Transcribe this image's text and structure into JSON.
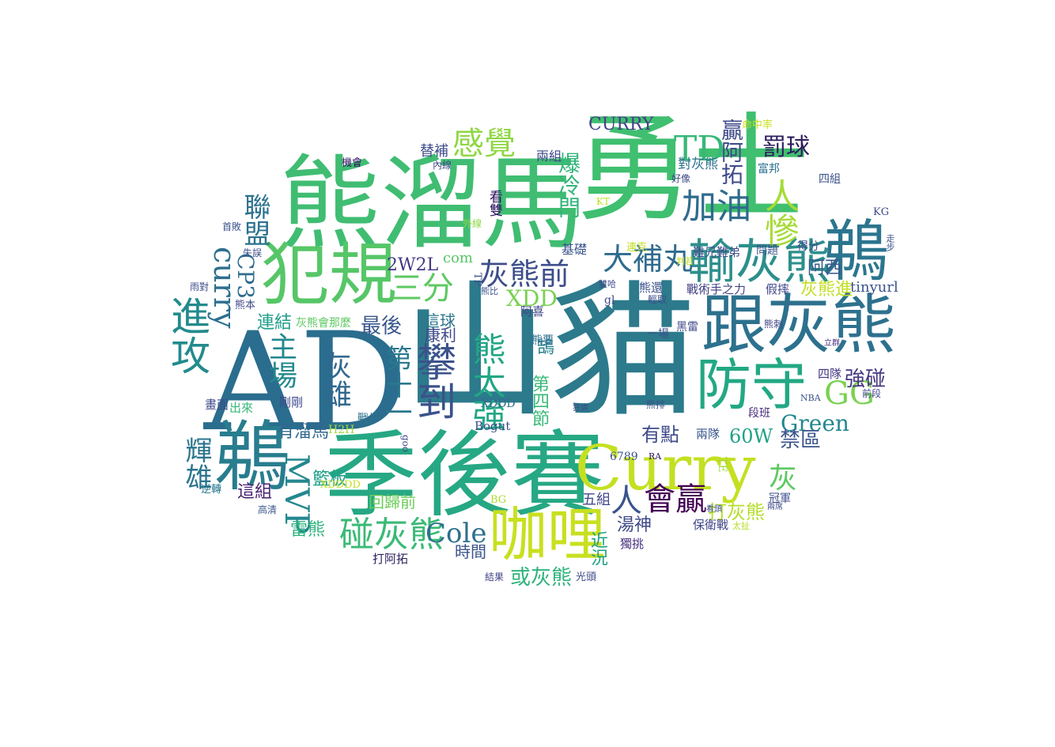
{
  "words": [
    {
      "text": "AD",
      "color": "#2a6d8e"
    },
    {
      "text": "山貓",
      "color": "#2c7a8c"
    },
    {
      "text": "勇士",
      "color": "#3fbf6f"
    },
    {
      "text": "熊溜馬",
      "color": "#40bd72"
    },
    {
      "text": "季後賽",
      "color": "#26a884"
    },
    {
      "text": "跟灰熊",
      "color": "#2d718e"
    },
    {
      "text": "Curry",
      "color": "#c4e021"
    },
    {
      "text": "鵜",
      "color": "#2b758e"
    },
    {
      "text": "鵜",
      "color": "#287d8e"
    },
    {
      "text": "犯規",
      "color": "#56c667"
    },
    {
      "text": "咖哩",
      "color": "#c8e020"
    },
    {
      "text": "防守",
      "color": "#22a884"
    },
    {
      "text": "輸灰熊",
      "color": "#2c8f8c"
    },
    {
      "text": "大補丸",
      "color": "#2f6c8e"
    },
    {
      "text": "灰熊前",
      "color": "#3d4e8a"
    },
    {
      "text": "進攻",
      "color": "#238a8d"
    },
    {
      "text": "攀到",
      "color": "#3b528b"
    },
    {
      "text": "熊太強",
      "color": "#22a785"
    },
    {
      "text": "TD",
      "color": "#37b878"
    },
    {
      "text": "GG",
      "color": "#7ad151"
    },
    {
      "text": "加油",
      "color": "#2f6b8e"
    },
    {
      "text": "人慘",
      "color": "#a5db36"
    },
    {
      "text": "感覺",
      "color": "#8fd744"
    },
    {
      "text": "三分",
      "color": "#5ec962"
    },
    {
      "text": "碰灰熊",
      "color": "#3aba76"
    },
    {
      "text": "curry",
      "color": "#2e6f8e"
    },
    {
      "text": "MVP",
      "color": "#24878e"
    },
    {
      "text": "Cole",
      "color": "#2d708e"
    },
    {
      "text": "會贏",
      "color": "#440154"
    },
    {
      "text": "人",
      "color": "#3a548c"
    },
    {
      "text": "灰",
      "color": "#5ec962"
    },
    {
      "text": "主場",
      "color": "#23898e"
    },
    {
      "text": "灰雄",
      "color": "#31688e"
    },
    {
      "text": "第十一",
      "color": "#2a788e"
    },
    {
      "text": "聯盟",
      "color": "#2c728e"
    },
    {
      "text": "輝雄",
      "color": "#2b758e"
    },
    {
      "text": "CP3",
      "color": "#2e6d8e"
    },
    {
      "text": "罰球",
      "color": "#2d1e5e"
    },
    {
      "text": "贏阿拓",
      "color": "#3e4989"
    },
    {
      "text": "爆冷門",
      "color": "#31b57b"
    },
    {
      "text": "Green",
      "color": "#23888e"
    },
    {
      "text": "強碰",
      "color": "#453781"
    },
    {
      "text": "XDD",
      "color": "#7ad151"
    },
    {
      "text": "最後",
      "color": "#39568c"
    },
    {
      "text": "2W2L",
      "color": "#443983"
    },
    {
      "text": "60W",
      "color": "#1fa187"
    },
    {
      "text": "有點",
      "color": "#3e4a89"
    },
    {
      "text": "禁區",
      "color": "#3a548c"
    },
    {
      "text": "湯神",
      "color": "#3e4a89"
    },
    {
      "text": "或灰熊",
      "color": "#2eb37c"
    },
    {
      "text": "打灰熊",
      "color": "#b5de2b"
    },
    {
      "text": "灰熊進",
      "color": "#c2df23"
    },
    {
      "text": "阿西",
      "color": "#38598c"
    },
    {
      "text": "CURRY",
      "color": "#424086"
    },
    {
      "text": "tinyurl",
      "color": "#3b528b"
    },
    {
      "text": "這球",
      "color": "#2b758e"
    },
    {
      "text": "康利",
      "color": "#3e4989"
    },
    {
      "text": "連結",
      "color": "#1f9e89"
    },
    {
      "text": "有溜馬",
      "color": "#31688e"
    },
    {
      "text": "這組",
      "color": "#481f70"
    },
    {
      "text": "籃板",
      "color": "#1f9e89"
    },
    {
      "text": "雷熊",
      "color": "#2eb37c"
    },
    {
      "text": "時間",
      "color": "#3b528b"
    },
    {
      "text": "回歸前",
      "color": "#6ccd5a"
    },
    {
      "text": "五組",
      "color": "#3f4889"
    },
    {
      "text": "近況",
      "color": "#1fa187"
    },
    {
      "text": "第四節",
      "color": "#38b977"
    },
    {
      "text": "鵠",
      "color": "#277f8e"
    },
    {
      "text": "com",
      "color": "#58c765"
    },
    {
      "text": "替補",
      "color": "#3e4c8a"
    },
    {
      "text": "兩組",
      "color": "#3f4788"
    },
    {
      "text": "看雙",
      "color": "#2d1160"
    },
    {
      "text": "基礎",
      "color": "#3b528b"
    },
    {
      "text": "對灰熊",
      "color": "#2c728e"
    },
    {
      "text": "富邦",
      "color": "#2c728e"
    },
    {
      "text": "四組",
      "color": "#3b528b"
    },
    {
      "text": "得分",
      "color": "#3e4989"
    },
    {
      "text": "問題",
      "color": "#3a548c"
    },
    {
      "text": "難兄難弟",
      "color": "#3d4e8a"
    },
    {
      "text": "戰術手之力",
      "color": "#424186"
    },
    {
      "text": "假摔",
      "color": "#3f4889"
    },
    {
      "text": "熊還",
      "color": "#3b528b"
    },
    {
      "text": "阿喜",
      "color": "#414487"
    },
    {
      "text": "熊要",
      "color": "#2e6e8e"
    },
    {
      "text": "四隊",
      "color": "#453882"
    },
    {
      "text": "段班",
      "color": "#472d7b"
    },
    {
      "text": "兩隊",
      "color": "#39568c"
    },
    {
      "text": "冠軍",
      "color": "#3d4e8a"
    },
    {
      "text": "保衛戰",
      "color": "#3f4889"
    },
    {
      "text": "獨挑",
      "color": "#472f7d"
    },
    {
      "text": "光頭",
      "color": "#3e4989"
    },
    {
      "text": "結果",
      "color": "#414487"
    },
    {
      "text": "打阿拓",
      "color": "#2d1e5e"
    },
    {
      "text": "畫面",
      "color": "#3e4989"
    },
    {
      "text": "出來",
      "color": "#35b779"
    },
    {
      "text": "剛剛",
      "color": "#3e4989"
    },
    {
      "text": "戰外",
      "color": "#2d718e"
    },
    {
      "text": "灰熊會那麼",
      "color": "#5ec962"
    },
    {
      "text": "XDDD",
      "color": "#2e6d8e"
    },
    {
      "text": "Bogut",
      "color": "#3e4989"
    },
    {
      "text": "H2H",
      "color": "#9fda3a"
    },
    {
      "text": "6789",
      "color": "#3b528b"
    },
    {
      "text": "XDDDD",
      "color": "#c2df23"
    },
    {
      "text": "BG",
      "color": "#aadc32"
    },
    {
      "text": "gl",
      "color": "#3e4a89"
    },
    {
      "text": "goo",
      "color": "#3e4989"
    },
    {
      "text": "機會",
      "color": "#2d1160"
    },
    {
      "text": "首敗",
      "color": "#3b528b"
    },
    {
      "text": "逆轉",
      "color": "#2a788e"
    },
    {
      "text": "熊本",
      "color": "#3f4889"
    },
    {
      "text": "高清",
      "color": "#39568c"
    },
    {
      "text": "雨對",
      "color": "#3d4e8a"
    },
    {
      "text": "一場",
      "color": "#3b528b"
    },
    {
      "text": "黑雷",
      "color": "#3e4a89"
    },
    {
      "text": "NBA",
      "color": "#3b528b"
    },
    {
      "text": "RA",
      "color": "#2d1160"
    },
    {
      "text": "TE",
      "color": "#9fda3a"
    },
    {
      "text": "KG",
      "color": "#3e4989"
    },
    {
      "text": "TP",
      "color": "#3e4a89"
    },
    {
      "text": "KT",
      "color": "#c2df23"
    },
    {
      "text": "走步",
      "color": "#3b528b"
    },
    {
      "text": "命中率",
      "color": "#cae11f"
    },
    {
      "text": "失誤",
      "color": "#3d4e8a"
    },
    {
      "text": "熊刺",
      "color": "#414487"
    },
    {
      "text": "立群",
      "color": "#472d7b"
    },
    {
      "text": "熊排",
      "color": "#3b528b"
    },
    {
      "text": "連克",
      "color": "#c2df23"
    },
    {
      "text": "雙哈",
      "color": "#3e4989"
    },
    {
      "text": "輕取",
      "color": "#3d4e8a"
    },
    {
      "text": "熊比",
      "color": "#3b528b"
    },
    {
      "text": "好像",
      "color": "#3e4989"
    },
    {
      "text": "外線",
      "color": "#8fd744"
    },
    {
      "text": "內線",
      "color": "#3f4889"
    },
    {
      "text": "狂虐",
      "color": "#3e4989"
    },
    {
      "text": "前段",
      "color": "#3f4889"
    },
    {
      "text": "看頭",
      "color": "#3d4e8a"
    },
    {
      "text": "兩席",
      "color": "#3e4989"
    },
    {
      "text": "判若",
      "color": "#c2df23"
    },
    {
      "text": "太扯",
      "color": "#b5de2b"
    }
  ]
}
